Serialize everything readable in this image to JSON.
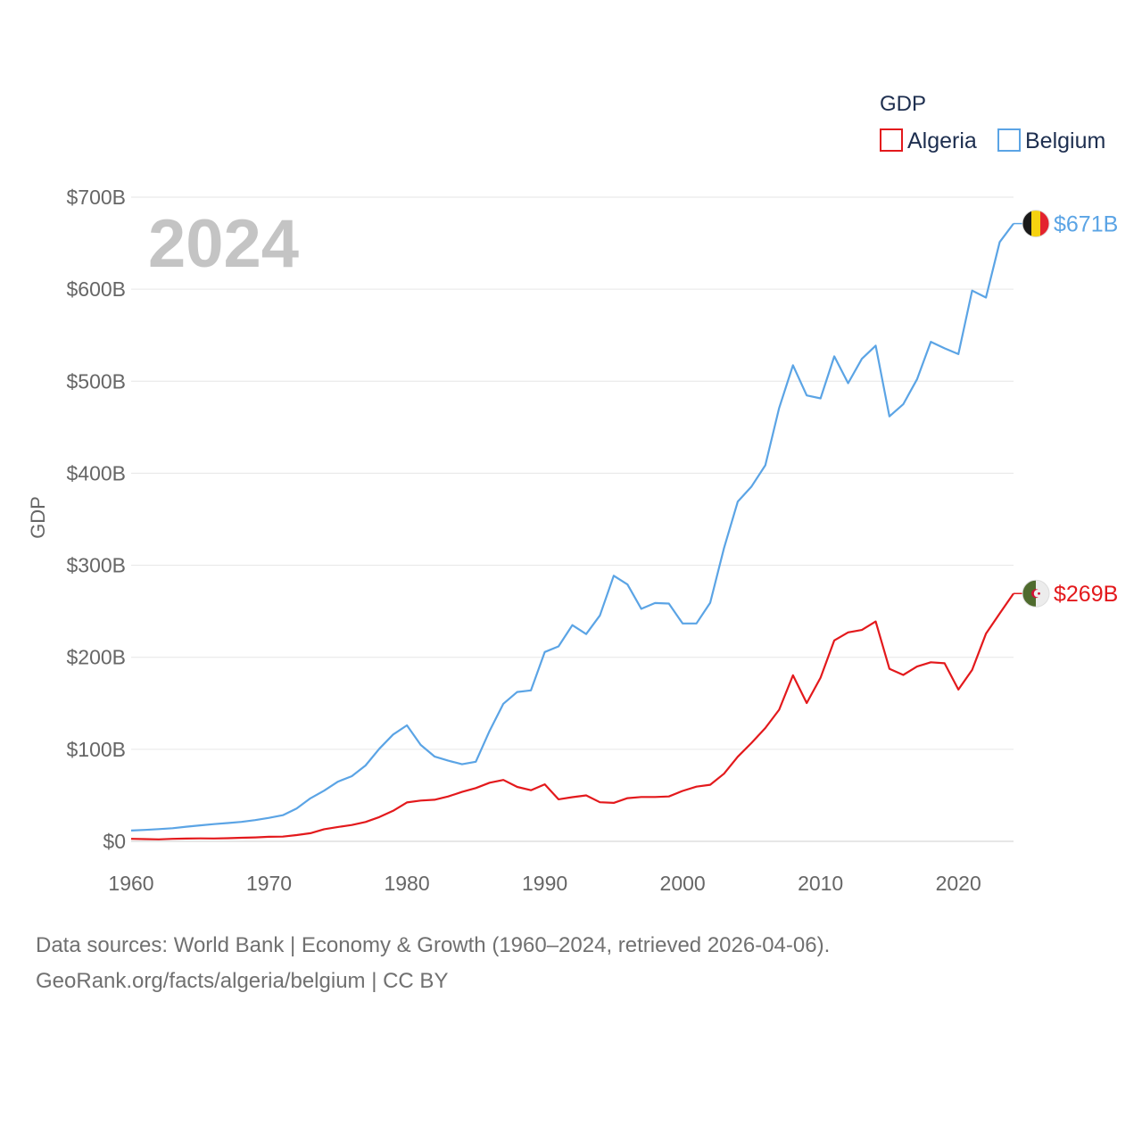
{
  "chart_data": {
    "type": "line",
    "year_watermark": "2024",
    "legend": {
      "title": "GDP",
      "placement": "top-right"
    },
    "ylabel": "GDP",
    "ylim": [
      0,
      700
    ],
    "xlim": [
      1960,
      2024
    ],
    "y_ticks": [
      {
        "value": 0,
        "label": "$0"
      },
      {
        "value": 100,
        "label": "$100B"
      },
      {
        "value": 200,
        "label": "$200B"
      },
      {
        "value": 300,
        "label": "$300B"
      },
      {
        "value": 400,
        "label": "$400B"
      },
      {
        "value": 500,
        "label": "$500B"
      },
      {
        "value": 600,
        "label": "$600B"
      },
      {
        "value": 700,
        "label": "$700B"
      }
    ],
    "x_ticks": [
      {
        "value": 1960,
        "label": "1960"
      },
      {
        "value": 1970,
        "label": "1970"
      },
      {
        "value": 1980,
        "label": "1980"
      },
      {
        "value": 1990,
        "label": "1990"
      },
      {
        "value": 2000,
        "label": "2000"
      },
      {
        "value": 2010,
        "label": "2010"
      },
      {
        "value": 2020,
        "label": "2020"
      }
    ],
    "x": [
      1960,
      1961,
      1962,
      1963,
      1964,
      1965,
      1966,
      1967,
      1968,
      1969,
      1970,
      1971,
      1972,
      1973,
      1974,
      1975,
      1976,
      1977,
      1978,
      1979,
      1980,
      1981,
      1982,
      1983,
      1984,
      1985,
      1986,
      1987,
      1988,
      1989,
      1990,
      1991,
      1992,
      1993,
      1994,
      1995,
      1996,
      1997,
      1998,
      1999,
      2000,
      2001,
      2002,
      2003,
      2004,
      2005,
      2006,
      2007,
      2008,
      2009,
      2010,
      2011,
      2012,
      2013,
      2014,
      2015,
      2016,
      2017,
      2018,
      2019,
      2020,
      2021,
      2022,
      2023,
      2024
    ],
    "series": [
      {
        "name": "Algeria",
        "color": "#e3191c",
        "end_label": "$269B",
        "flag": "algeria-flag",
        "values": [
          2.7,
          2.4,
          2.1,
          2.7,
          3.0,
          3.2,
          3.1,
          3.4,
          3.9,
          4.3,
          4.9,
          5.1,
          6.8,
          8.8,
          13.2,
          15.6,
          17.7,
          21.0,
          26.4,
          33.2,
          42.3,
          44.3,
          45.2,
          48.8,
          53.7,
          57.9,
          63.7,
          66.7,
          59.1,
          55.6,
          62.0,
          45.7,
          48.0,
          49.9,
          42.5,
          41.8,
          46.9,
          48.2,
          48.2,
          48.8,
          54.8,
          59.4,
          61.5,
          73.5,
          91.9,
          107.0,
          123.1,
          143.0,
          180.4,
          150.3,
          177.8,
          218.3,
          227.1,
          229.7,
          238.9,
          187.5,
          180.8,
          189.9,
          194.6,
          193.5,
          164.9,
          186.2,
          225.6,
          247.6,
          269.3
        ]
      },
      {
        "name": "Belgium",
        "color": "#5ba4e5",
        "end_label": "$671B",
        "flag": "belgium-flag",
        "values": [
          11.7,
          12.4,
          13.3,
          14.3,
          15.9,
          17.4,
          18.7,
          19.9,
          21.1,
          23.1,
          25.5,
          28.4,
          35.7,
          46.7,
          55.1,
          64.9,
          70.8,
          82.4,
          100.6,
          116.1,
          126.0,
          104.8,
          92.2,
          87.6,
          83.8,
          86.5,
          120.1,
          149.5,
          162.3,
          164.0,
          205.7,
          211.8,
          234.9,
          225.2,
          245.5,
          288.6,
          279.1,
          252.7,
          259.0,
          258.4,
          236.8,
          236.8,
          259.3,
          318.7,
          369.1,
          385.7,
          408.7,
          470.9,
          517.3,
          484.6,
          481.4,
          527.0,
          497.9,
          524.3,
          538.7,
          461.8,
          475.0,
          502.0,
          542.8,
          535.8,
          529.5,
          598.5,
          590.9,
          651.2,
          671.3
        ]
      }
    ]
  },
  "footer": {
    "line1": "Data sources: World Bank | Economy & Growth (1960–2024, retrieved 2026-04-06).",
    "line2": "GeoRank.org/facts/algeria/belgium | CC BY"
  }
}
